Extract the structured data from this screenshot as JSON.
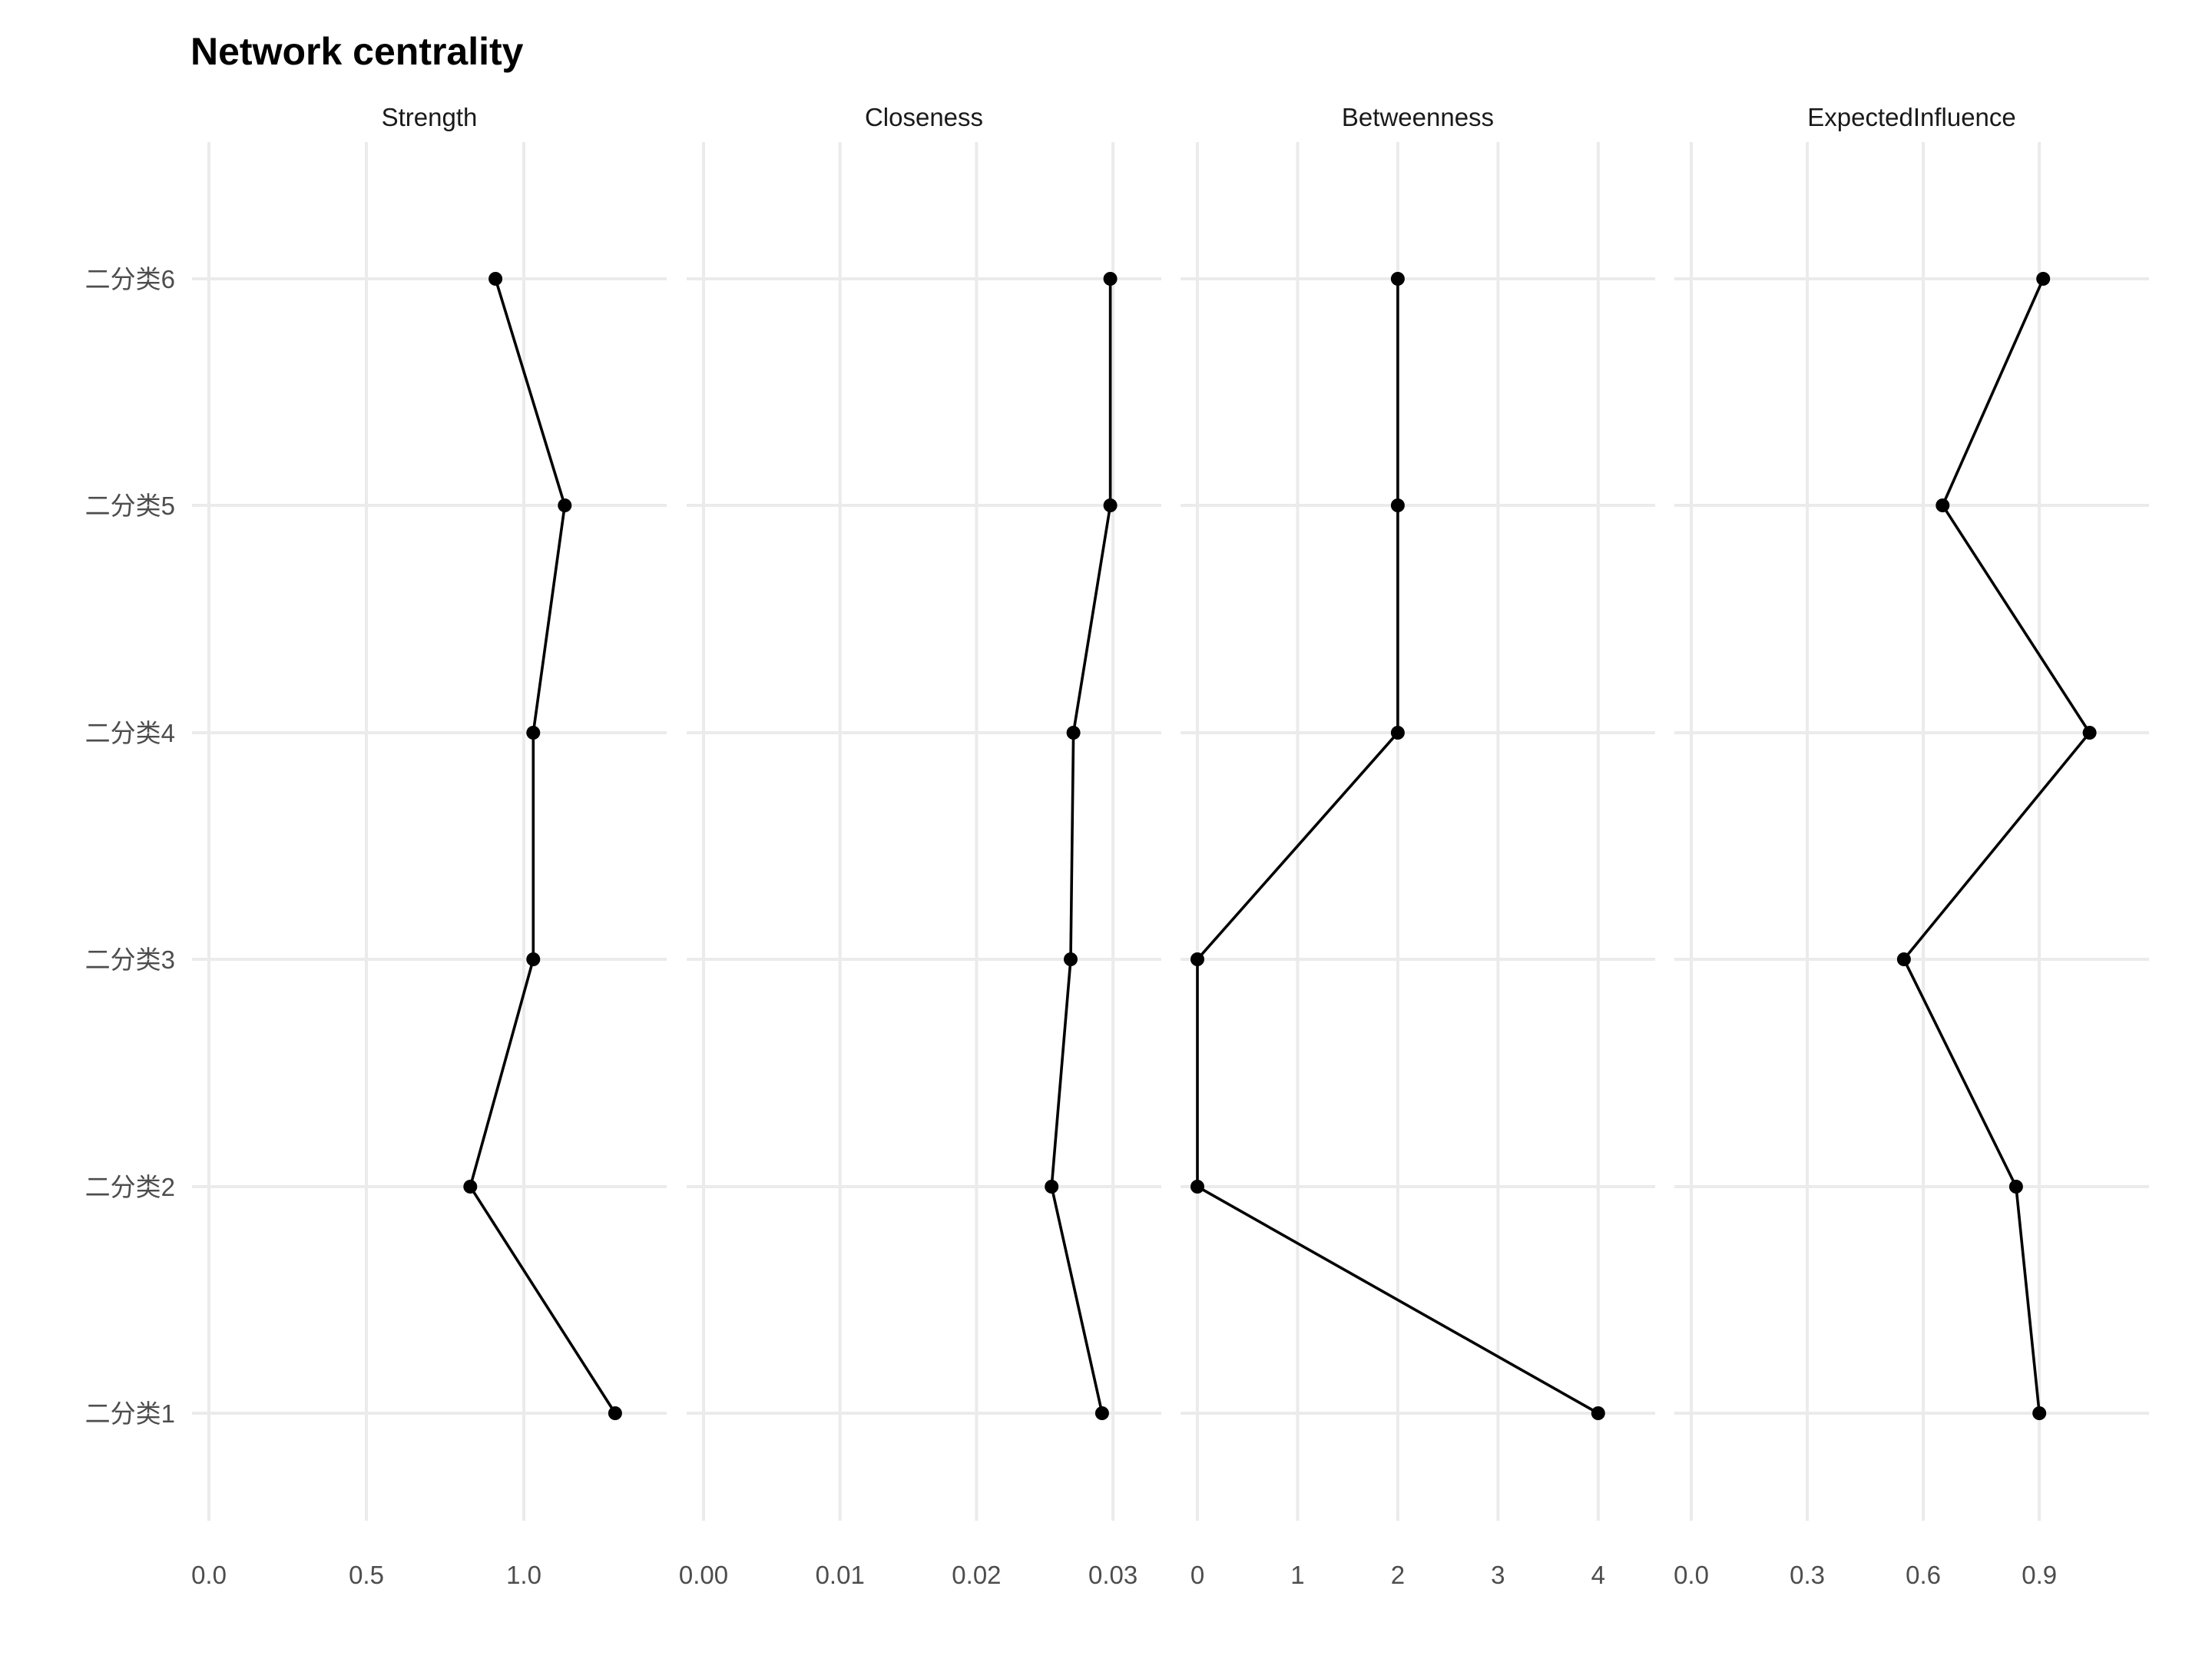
{
  "chart_data": {
    "type": "line",
    "title": "Network centrality",
    "y_categories": [
      "二分类1",
      "二分类2",
      "二分类3",
      "二分类4",
      "二分类5",
      "二分类6"
    ],
    "panels": [
      {
        "name": "Strength",
        "xlim": [
          0,
          1.4
        ],
        "xticks": [
          0,
          0.5,
          1.0
        ],
        "xtick_labels": [
          "0.0",
          "0.5",
          "1.0"
        ],
        "values": [
          1.29,
          0.83,
          1.03,
          1.03,
          1.13,
          0.91
        ]
      },
      {
        "name": "Closeness",
        "xlim": [
          0,
          0.0323
        ],
        "xticks": [
          0,
          0.01,
          0.02,
          0.03
        ],
        "xtick_labels": [
          "0.00",
          "0.01",
          "0.02",
          "0.03"
        ],
        "values": [
          0.0292,
          0.0255,
          0.0269,
          0.0271,
          0.0298,
          0.0298
        ]
      },
      {
        "name": "Betweenness",
        "xlim": [
          0,
          4.4
        ],
        "xticks": [
          0,
          1,
          2,
          3,
          4
        ],
        "xtick_labels": [
          "0",
          "1",
          "2",
          "3",
          "4"
        ],
        "values": [
          4,
          0,
          0,
          2,
          2,
          2
        ]
      },
      {
        "name": "ExpectedInfluence",
        "xlim": [
          0,
          1.14
        ],
        "xticks": [
          0,
          0.3,
          0.6,
          0.9
        ],
        "xtick_labels": [
          "0.0",
          "0.3",
          "0.6",
          "0.9"
        ],
        "values": [
          0.9,
          0.84,
          0.55,
          1.03,
          0.65,
          0.91
        ]
      }
    ],
    "grid": true,
    "legend": "none"
  }
}
